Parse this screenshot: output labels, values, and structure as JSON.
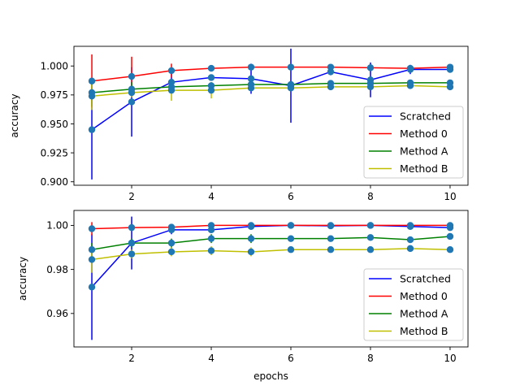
{
  "chart_data": [
    {
      "type": "line",
      "panel": "top",
      "title": "",
      "xlabel": "",
      "ylabel": "accuracy",
      "xlim": [
        0.55,
        10.45
      ],
      "ylim": [
        0.897,
        1.017
      ],
      "xticks": [
        2,
        4,
        6,
        8,
        10
      ],
      "yticks": [
        0.9,
        0.925,
        0.95,
        0.975,
        1.0
      ],
      "xtick_labels": [
        "2",
        "4",
        "6",
        "8",
        "10"
      ],
      "ytick_labels": [
        "0.900",
        "0.925",
        "0.950",
        "0.975",
        "1.000"
      ],
      "legend_position": "lower-right",
      "marker_color": "#1f77b4",
      "x": [
        1,
        2,
        3,
        4,
        5,
        6,
        7,
        8,
        9,
        10
      ],
      "series": [
        {
          "name": "Scratched",
          "color": "#0000ff",
          "values": [
            0.945,
            0.969,
            0.986,
            0.99,
            0.989,
            0.983,
            0.995,
            0.988,
            0.997,
            0.997
          ],
          "errors": [
            0.043,
            0.03,
            0.008,
            0.002,
            0.013,
            0.032,
            0.003,
            0.015,
            0.004,
            0.002
          ]
        },
        {
          "name": "Method 0",
          "color": "#ff0000",
          "values": [
            0.987,
            0.991,
            0.996,
            0.998,
            0.999,
            0.999,
            0.999,
            0.9985,
            0.998,
            0.999
          ],
          "errors": [
            0.023,
            0.017,
            0.006,
            0.002,
            0.001,
            0.001,
            0.001,
            0.001,
            0.002,
            0.001
          ]
        },
        {
          "name": "Method A",
          "color": "#008000",
          "values": [
            0.977,
            0.98,
            0.982,
            0.983,
            0.984,
            0.984,
            0.985,
            0.985,
            0.9855,
            0.9855
          ],
          "errors": [
            0.012,
            0.006,
            0.005,
            0.003,
            0.002,
            0.002,
            0.002,
            0.003,
            0.002,
            0.002
          ]
        },
        {
          "name": "Method B",
          "color": "#bfbf00",
          "values": [
            0.974,
            0.977,
            0.979,
            0.979,
            0.981,
            0.981,
            0.982,
            0.982,
            0.983,
            0.982
          ],
          "errors": [
            0.012,
            0.004,
            0.009,
            0.007,
            0.002,
            0.002,
            0.002,
            0.002,
            0.002,
            0.002
          ]
        }
      ]
    },
    {
      "type": "line",
      "panel": "bottom",
      "title": "",
      "xlabel": "epochs",
      "ylabel": "accuracy",
      "xlim": [
        0.55,
        10.45
      ],
      "ylim": [
        0.9448,
        1.0068
      ],
      "xticks": [
        2,
        4,
        6,
        8,
        10
      ],
      "yticks": [
        0.96,
        0.98,
        1.0
      ],
      "xtick_labels": [
        "2",
        "4",
        "6",
        "8",
        "10"
      ],
      "ytick_labels": [
        "0.96",
        "0.98",
        "1.00"
      ],
      "legend_position": "lower-right",
      "marker_color": "#1f77b4",
      "x": [
        1,
        2,
        3,
        4,
        5,
        6,
        7,
        8,
        9,
        10
      ],
      "series": [
        {
          "name": "Scratched",
          "color": "#0000ff",
          "values": [
            0.972,
            0.992,
            0.998,
            0.998,
            0.9995,
            1.0,
            0.9998,
            1.0,
            0.9995,
            0.999
          ],
          "errors": [
            0.024,
            0.012,
            0.002,
            0.001,
            0.0005,
            0.0005,
            0.0005,
            0.0005,
            0.0005,
            0.001
          ]
        },
        {
          "name": "Method 0",
          "color": "#ff0000",
          "values": [
            0.9985,
            0.999,
            0.9992,
            1.0,
            1.0,
            1.0,
            1.0,
            1.0,
            1.0,
            1.0
          ],
          "errors": [
            0.003,
            0.001,
            0.001,
            0.0005,
            0.0005,
            0.0005,
            0.0005,
            0.0005,
            0.0005,
            0.0005
          ]
        },
        {
          "name": "Method A",
          "color": "#008000",
          "values": [
            0.989,
            0.992,
            0.992,
            0.994,
            0.994,
            0.994,
            0.994,
            0.9945,
            0.9935,
            0.995
          ],
          "errors": [
            0.003,
            0.002,
            0.002,
            0.002,
            0.002,
            0.001,
            0.001,
            0.001,
            0.001,
            0.001
          ]
        },
        {
          "name": "Method B",
          "color": "#bfbf00",
          "values": [
            0.9845,
            0.987,
            0.988,
            0.9885,
            0.988,
            0.989,
            0.989,
            0.989,
            0.9895,
            0.989
          ],
          "errors": [
            0.006,
            0.002,
            0.002,
            0.002,
            0.002,
            0.001,
            0.001,
            0.001,
            0.001,
            0.001
          ]
        }
      ]
    }
  ]
}
